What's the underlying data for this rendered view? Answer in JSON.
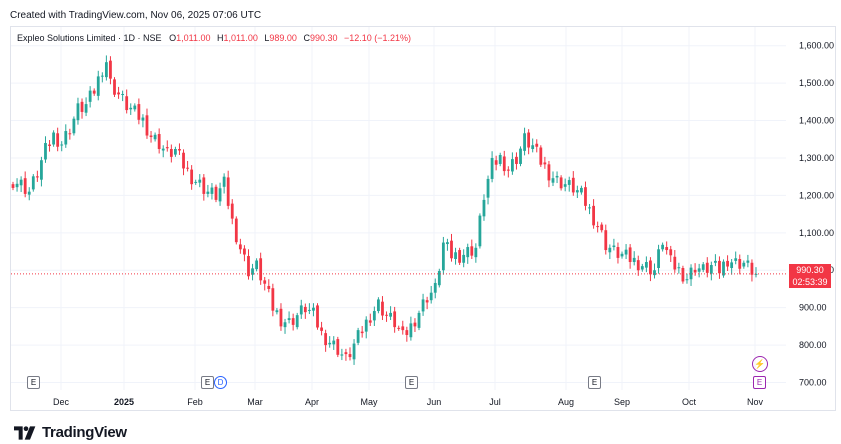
{
  "header": {
    "created": "Created with TradingView.com, Nov 06, 2025 07:06 UTC"
  },
  "legend": {
    "symbol": "Expleo Solutions Limited · 1D · NSE",
    "o_label": "O",
    "o_value": "1,011.00",
    "h_label": "H",
    "h_value": "1,011.00",
    "l_label": "L",
    "l_value": "989.00",
    "c_label": "C",
    "c_value": "990.30",
    "change": "−12.10 (−1.21%)"
  },
  "price_tag": {
    "price": "990.30",
    "countdown": "02:53:39"
  },
  "events": {
    "earnings": "E",
    "dividend": "D",
    "flash": "⚡"
  },
  "footer": {
    "brand": "TradingView"
  },
  "colors": {
    "up": "#26a69a",
    "down": "#f23645",
    "grid": "#f0f3fa",
    "axis_text": "#131722"
  },
  "chart_data": {
    "type": "candlestick",
    "title": "Expleo Solutions Limited · 1D · NSE",
    "xlabel": "",
    "ylabel": "",
    "ylim": [
      680,
      1650
    ],
    "y_ticks": [
      "700.00",
      "800.00",
      "900.00",
      "1,000.00",
      "1,100.00",
      "1,200.00",
      "1,300.00",
      "1,400.00",
      "1,500.00",
      "1,600.00"
    ],
    "y_tick_values": [
      700,
      800,
      900,
      1000,
      1100,
      1200,
      1300,
      1400,
      1500,
      1600
    ],
    "x_ticks": [
      "Dec",
      "2025",
      "Feb",
      "Mar",
      "Apr",
      "May",
      "Jun",
      "Jul",
      "Aug",
      "Sep",
      "Oct",
      "Nov"
    ],
    "grid": true,
    "last_price": 990.3,
    "price_path": [
      [
        0,
        1240
      ],
      [
        2,
        1230
      ],
      [
        4,
        1210
      ],
      [
        6,
        1260
      ],
      [
        8,
        1320
      ],
      [
        10,
        1360
      ],
      [
        12,
        1340
      ],
      [
        14,
        1380
      ],
      [
        16,
        1430
      ],
      [
        18,
        1440
      ],
      [
        20,
        1480
      ],
      [
        22,
        1540
      ],
      [
        23,
        1560
      ],
      [
        24,
        1500
      ],
      [
        26,
        1470
      ],
      [
        28,
        1440
      ],
      [
        30,
        1420
      ],
      [
        32,
        1400
      ],
      [
        34,
        1360
      ],
      [
        36,
        1340
      ],
      [
        38,
        1310
      ],
      [
        40,
        1320
      ],
      [
        42,
        1280
      ],
      [
        44,
        1250
      ],
      [
        46,
        1230
      ],
      [
        48,
        1210
      ],
      [
        50,
        1200
      ],
      [
        52,
        1230
      ],
      [
        54,
        1130
      ],
      [
        56,
        1060
      ],
      [
        58,
        1000
      ],
      [
        60,
        1010
      ],
      [
        62,
        960
      ],
      [
        64,
        900
      ],
      [
        66,
        870
      ],
      [
        68,
        860
      ],
      [
        70,
        880
      ],
      [
        72,
        900
      ],
      [
        74,
        880
      ],
      [
        76,
        830
      ],
      [
        78,
        810
      ],
      [
        80,
        790
      ],
      [
        82,
        760
      ],
      [
        84,
        800
      ],
      [
        86,
        840
      ],
      [
        88,
        880
      ],
      [
        90,
        910
      ],
      [
        92,
        880
      ],
      [
        94,
        860
      ],
      [
        96,
        820
      ],
      [
        98,
        850
      ],
      [
        100,
        890
      ],
      [
        102,
        930
      ],
      [
        104,
        950
      ],
      [
        106,
        1070
      ],
      [
        108,
        1040
      ],
      [
        110,
        1040
      ],
      [
        112,
        1050
      ],
      [
        114,
        1060
      ],
      [
        116,
        1200
      ],
      [
        118,
        1280
      ],
      [
        120,
        1300
      ],
      [
        122,
        1270
      ],
      [
        124,
        1300
      ],
      [
        126,
        1350
      ],
      [
        128,
        1330
      ],
      [
        130,
        1290
      ],
      [
        132,
        1260
      ],
      [
        134,
        1240
      ],
      [
        136,
        1230
      ],
      [
        138,
        1220
      ],
      [
        140,
        1200
      ],
      [
        142,
        1160
      ],
      [
        144,
        1120
      ],
      [
        146,
        1070
      ],
      [
        148,
        1050
      ],
      [
        150,
        1040
      ],
      [
        152,
        1030
      ],
      [
        154,
        1020
      ],
      [
        156,
        1010
      ],
      [
        158,
        1000
      ],
      [
        160,
        1080
      ],
      [
        162,
        1020
      ],
      [
        164,
        1000
      ],
      [
        166,
        980
      ],
      [
        168,
        1010
      ],
      [
        170,
        1000
      ],
      [
        172,
        1010
      ],
      [
        174,
        1000
      ],
      [
        176,
        1030
      ],
      [
        178,
        1020
      ],
      [
        180,
        1020
      ],
      [
        182,
        1000
      ],
      [
        183,
        990.3
      ]
    ]
  }
}
